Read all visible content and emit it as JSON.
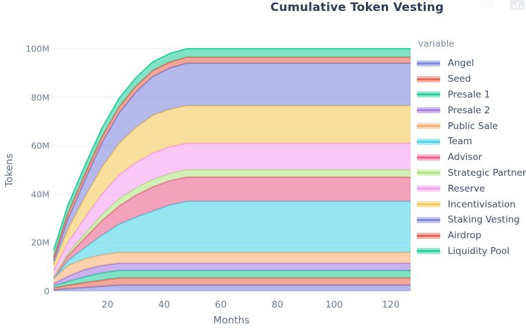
{
  "title": "Cumulative Token Vesting",
  "legend": {
    "title": "variable"
  },
  "modebar": {
    "logo_icon": "bar-chart-icon",
    "button_icon": "camera-icon"
  },
  "chart_data": {
    "type": "area",
    "stacked": true,
    "title": "Cumulative Token Vesting",
    "xlabel": "Months",
    "ylabel": "Tokens",
    "x": [
      1,
      6,
      12,
      18,
      24,
      30,
      36,
      42,
      48,
      60,
      72,
      84,
      96,
      108,
      120
    ],
    "x_ticks": [
      {
        "v": 20,
        "label": "20"
      },
      {
        "v": 40,
        "label": "40"
      },
      {
        "v": 60,
        "label": "60"
      },
      {
        "v": 80,
        "label": "80"
      },
      {
        "v": 100,
        "label": "100"
      },
      {
        "v": 120,
        "label": "120"
      }
    ],
    "y_ticks": [
      {
        "v": 0,
        "label": "0"
      },
      {
        "v": 20,
        "label": "20M"
      },
      {
        "v": 40,
        "label": "40M"
      },
      {
        "v": 60,
        "label": "60M"
      },
      {
        "v": 80,
        "label": "80M"
      },
      {
        "v": 100,
        "label": "100M"
      }
    ],
    "y_unit_millions": true,
    "xlim": [
      0.5,
      127
    ],
    "ylim": [
      0,
      104.5
    ],
    "grid": "horizontal",
    "legend_position": "right",
    "fill_opacity": 0.6,
    "series": [
      {
        "name": "Angel",
        "color": "#8289dd",
        "values_millions": [
          0.5,
          1.0,
          1.5,
          2.0,
          2.5,
          2.5,
          2.5,
          2.5,
          2.5,
          2.5,
          2.5,
          2.5,
          2.5,
          2.5,
          2.5
        ]
      },
      {
        "name": "Seed",
        "color": "#e66a55",
        "values_millions": [
          0.8,
          1.4,
          2.0,
          2.5,
          3.0,
          3.0,
          3.0,
          3.0,
          3.0,
          3.0,
          3.0,
          3.0,
          3.0,
          3.0,
          3.0
        ]
      },
      {
        "name": "Presale 1",
        "color": "#2fcf9f",
        "values_millions": [
          0.8,
          1.6,
          2.4,
          3.0,
          3.0,
          3.0,
          3.0,
          3.0,
          3.0,
          3.0,
          3.0,
          3.0,
          3.0,
          3.0,
          3.0
        ]
      },
      {
        "name": "Presale 2",
        "color": "#a97ee3",
        "values_millions": [
          1.0,
          2.0,
          3.0,
          3.0,
          3.0,
          3.0,
          3.0,
          3.0,
          3.0,
          3.0,
          3.0,
          3.0,
          3.0,
          3.0,
          3.0
        ]
      },
      {
        "name": "Public Sale",
        "color": "#f6b177",
        "values_millions": [
          2.0,
          4.5,
          4.5,
          4.5,
          4.5,
          4.5,
          4.5,
          4.5,
          4.5,
          4.5,
          4.5,
          4.5,
          4.5,
          4.5,
          4.5
        ]
      },
      {
        "name": "Team",
        "color": "#50d5e7",
        "values_millions": [
          0.0,
          2.0,
          4.5,
          8.0,
          11.5,
          14.5,
          17.0,
          19.5,
          21.0,
          21.0,
          21.0,
          21.0,
          21.0,
          21.0,
          21.0
        ]
      },
      {
        "name": "Advisor",
        "color": "#ef6690",
        "values_millions": [
          0.5,
          2.0,
          4.0,
          6.0,
          7.5,
          9.0,
          10.0,
          10.0,
          10.0,
          10.0,
          10.0,
          10.0,
          10.0,
          10.0,
          10.0
        ]
      },
      {
        "name": "Strategic Partners",
        "color": "#b2e583",
        "values_millions": [
          0.3,
          1.0,
          1.8,
          2.5,
          3.0,
          3.0,
          3.0,
          3.0,
          3.0,
          3.0,
          3.0,
          3.0,
          3.0,
          3.0,
          3.0
        ]
      },
      {
        "name": "Reserve",
        "color": "#f4a0f1",
        "values_millions": [
          2.5,
          4.5,
          6.5,
          8.5,
          9.8,
          10.5,
          11.0,
          11.0,
          11.0,
          11.0,
          11.0,
          11.0,
          11.0,
          11.0,
          11.0
        ]
      },
      {
        "name": "Incentivisation",
        "color": "#f5c95e",
        "values_millions": [
          2.5,
          5.5,
          8.5,
          11.0,
          13.0,
          14.5,
          15.5,
          15.5,
          15.5,
          15.5,
          15.5,
          15.5,
          15.5,
          15.5,
          15.5
        ]
      },
      {
        "name": "Staking Vesting",
        "color": "#8289dd",
        "values_millions": [
          1.5,
          4.0,
          7.0,
          10.0,
          12.5,
          14.5,
          16.0,
          17.0,
          17.5,
          17.5,
          17.5,
          17.5,
          17.5,
          17.5,
          17.5
        ]
      },
      {
        "name": "Airdrop",
        "color": "#e66a55",
        "values_millions": [
          1.5,
          2.5,
          2.5,
          2.5,
          2.5,
          2.5,
          2.5,
          2.5,
          2.5,
          2.5,
          2.5,
          2.5,
          2.5,
          2.5,
          2.5
        ]
      },
      {
        "name": "Liquidity Pool",
        "color": "#2fcf9f",
        "values_millions": [
          3.0,
          3.2,
          3.5,
          3.5,
          3.5,
          3.5,
          3.5,
          3.5,
          3.5,
          3.5,
          3.5,
          3.5,
          3.5,
          3.5,
          3.5
        ]
      }
    ],
    "total_supply_millions": 100
  }
}
